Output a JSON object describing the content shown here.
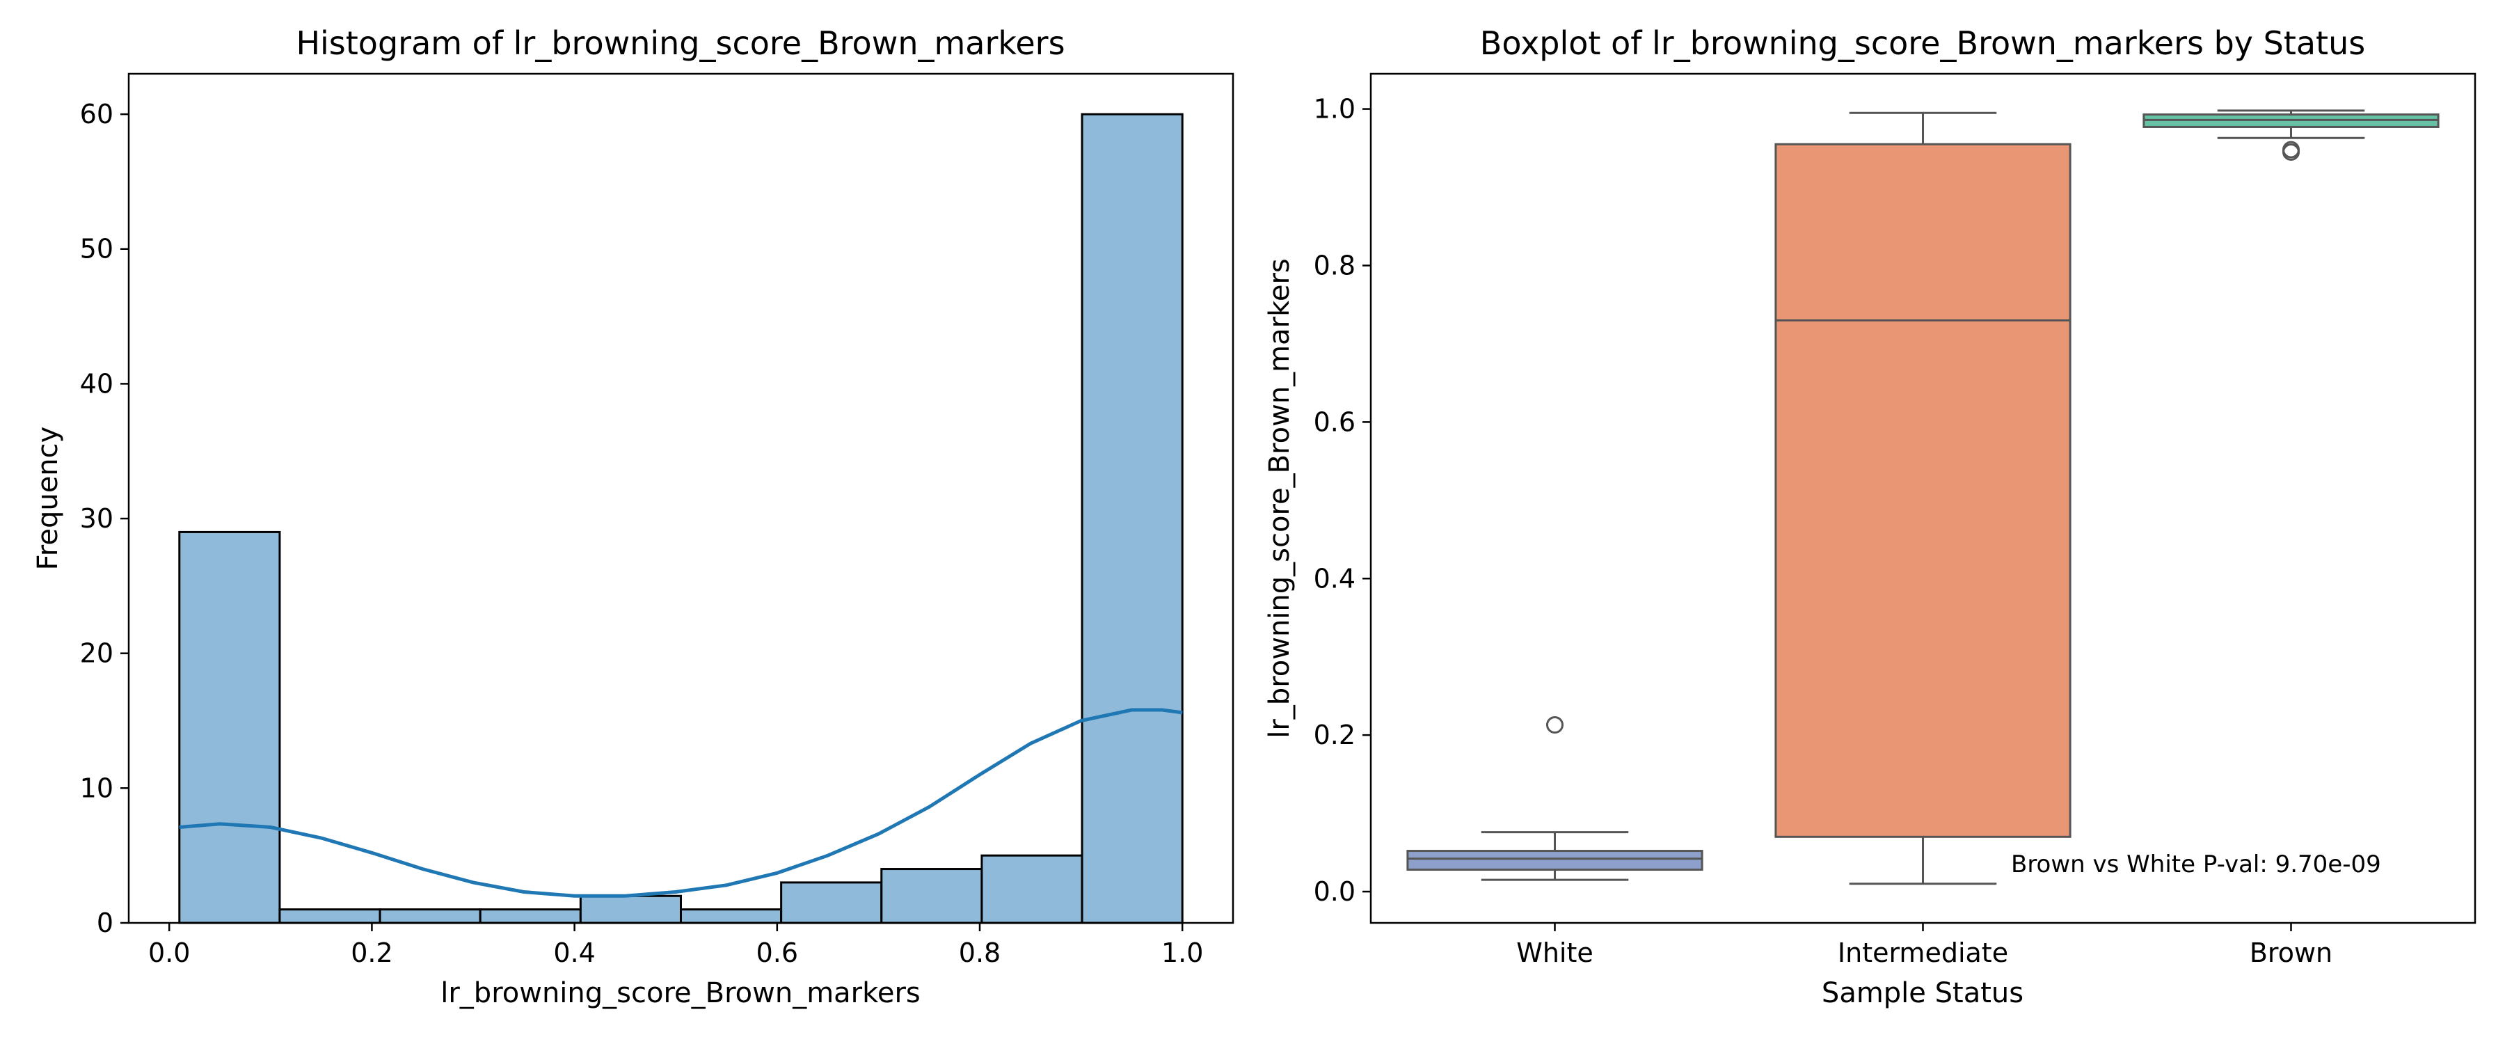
{
  "chart_data": [
    {
      "type": "histogram",
      "title": "Histogram of lr_browning_score_Brown_markers",
      "xlabel": "lr_browning_score_Brown_markers",
      "ylabel": "Frequency",
      "xlim": [
        -0.04,
        1.05
      ],
      "ylim": [
        0,
        63
      ],
      "xticks": [
        "0.0",
        "0.2",
        "0.4",
        "0.6",
        "0.8",
        "1.0"
      ],
      "yticks": [
        "0",
        "10",
        "20",
        "30",
        "40",
        "50",
        "60"
      ],
      "bin_edges": [
        0.01,
        0.109,
        0.208,
        0.307,
        0.406,
        0.505,
        0.604,
        0.703,
        0.802,
        0.901,
        1.0
      ],
      "counts": [
        29,
        1,
        1,
        1,
        2,
        1,
        3,
        4,
        5,
        60
      ],
      "kde": {
        "x": [
          0.01,
          0.05,
          0.1,
          0.15,
          0.2,
          0.25,
          0.3,
          0.35,
          0.4,
          0.45,
          0.5,
          0.55,
          0.6,
          0.65,
          0.7,
          0.75,
          0.8,
          0.85,
          0.9,
          0.95,
          0.98,
          1.0
        ],
        "y": [
          7.1,
          7.35,
          7.1,
          6.3,
          5.2,
          4.0,
          3.0,
          2.3,
          2.0,
          2.0,
          2.3,
          2.8,
          3.7,
          5.0,
          6.6,
          8.6,
          11.0,
          13.3,
          15.0,
          15.8,
          15.8,
          15.6
        ]
      },
      "bar_color": "#8fbad9",
      "line_color": "#1f77b4"
    },
    {
      "type": "boxplot",
      "title": "Boxplot of lr_browning_score_Brown_markers by Status",
      "xlabel": "Sample Status",
      "ylabel": "lr_browning_score_Brown_markers",
      "ylim": [
        -0.04,
        1.045
      ],
      "yticks": [
        "0.0",
        "0.2",
        "0.4",
        "0.6",
        "0.8",
        "1.0"
      ],
      "categories": [
        "White",
        "Intermediate",
        "Brown"
      ],
      "boxes": [
        {
          "name": "White",
          "whislo": 0.015,
          "q1": 0.028,
          "med": 0.042,
          "q3": 0.052,
          "whishi": 0.076,
          "fliers": [
            0.213
          ],
          "color": "#8da0cb"
        },
        {
          "name": "Intermediate",
          "whislo": 0.01,
          "q1": 0.07,
          "med": 0.73,
          "q3": 0.955,
          "whishi": 0.995,
          "fliers": [],
          "color": "#e99675"
        },
        {
          "name": "Brown",
          "whislo": 0.963,
          "q1": 0.977,
          "med": 0.986,
          "q3": 0.993,
          "whishi": 0.998,
          "fliers": [
            0.948,
            0.945
          ],
          "color": "#66c2a5"
        }
      ],
      "annotation": "Brown vs White P-val: 9.70e-09"
    }
  ]
}
